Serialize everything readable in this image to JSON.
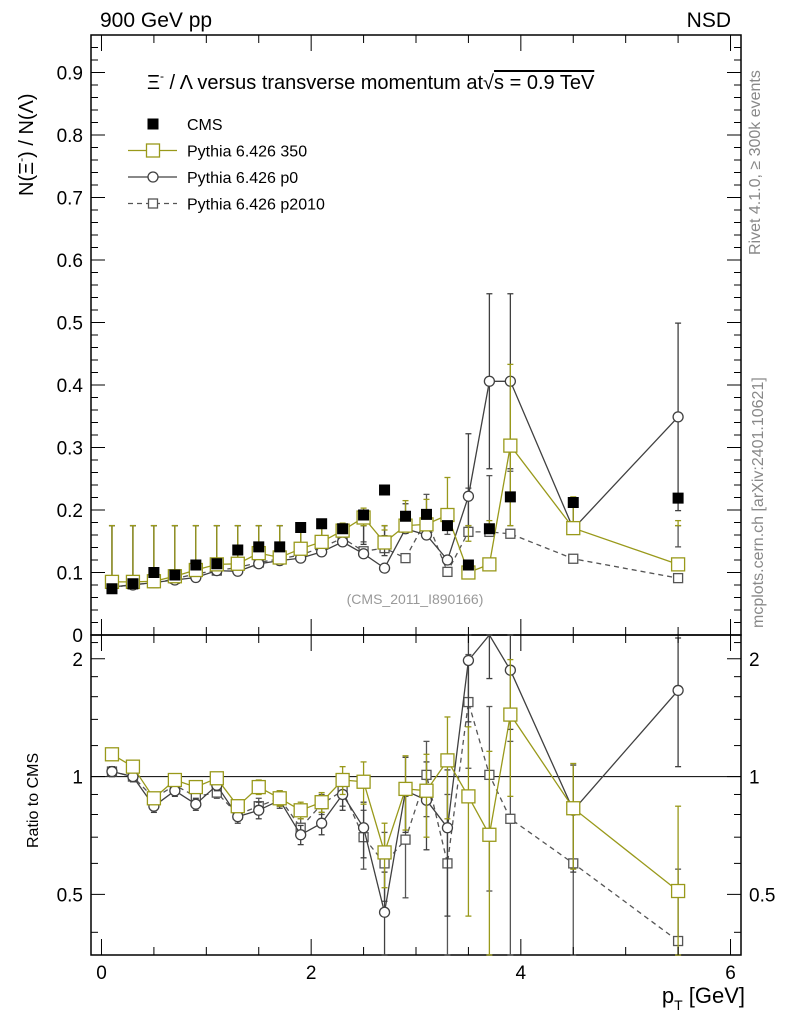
{
  "header": {
    "left": "900 GeV pp",
    "right": "NSD"
  },
  "side_labels": {
    "rivet": "Rivet 4.1.0, ≥ 300k events",
    "mcplots": "mcplots.cern.ch [arXiv:2401.10621]"
  },
  "chart_data": {
    "type": "scatter",
    "title": "Ξ⁻ / Λ versus transverse momentum at √s = 0.9 TeV",
    "title_parts": {
      "main": "Ξ",
      "sup": "-",
      "rest": " / Λ versus transverse momentum at",
      "sqrt": "√",
      "tail": "s = 0.9 TeV"
    },
    "ylabel": "N(Ξ⁻) / N(Λ)",
    "ylabel_parts": {
      "a": "N(Ξ",
      "sup": "-",
      "b": ")  / N(Λ)"
    },
    "ratio_ylabel": "Ratio to CMS",
    "xlabel": "p_T [GeV]",
    "xlabel_parts": {
      "p": "p",
      "sub": "T",
      "rest": " [GeV]"
    },
    "analysis_id": "(CMS_2011_I890166)",
    "xlim": [
      -0.1,
      6.1
    ],
    "ylim": [
      0,
      0.96
    ],
    "ratio_ylim": [
      0.35,
      2.3
    ],
    "x_ticks": [
      "0",
      "2",
      "4",
      "6"
    ],
    "y_ticks": [
      "0",
      "0.1",
      "0.2",
      "0.3",
      "0.4",
      "0.5",
      "0.6",
      "0.7",
      "0.8",
      "0.9"
    ],
    "ratio_ticks": [
      "0.5",
      "1",
      "2"
    ],
    "x": [
      0.1,
      0.3,
      0.5,
      0.7,
      0.9,
      1.1,
      1.3,
      1.5,
      1.7,
      1.9,
      2.1,
      2.3,
      2.5,
      2.7,
      2.9,
      3.1,
      3.3,
      3.5,
      3.7,
      3.9,
      4.5,
      5.5
    ],
    "series": [
      {
        "name": "CMS",
        "style": "filled-square",
        "color": "#000000",
        "values": [
          0.074,
          0.082,
          0.1,
          0.096,
          0.112,
          0.114,
          0.136,
          0.141,
          0.141,
          0.172,
          0.178,
          0.17,
          0.192,
          0.232,
          0.19,
          0.193,
          0.175,
          0.112,
          0.17,
          0.221,
          0.212,
          0.219
        ]
      },
      {
        "name": "Pythia 6.426 350",
        "style": "open-square-solid",
        "color": "#99991a",
        "values": [
          0.085,
          0.085,
          0.086,
          0.094,
          0.104,
          0.113,
          0.114,
          0.131,
          0.124,
          0.138,
          0.149,
          0.167,
          0.188,
          0.148,
          0.175,
          0.177,
          0.192,
          0.1,
          0.113,
          0.303,
          0.171,
          0.113
        ],
        "errors": [
          0.003,
          0.003,
          0.003,
          0.003,
          0.004,
          0.004,
          0.004,
          0.005,
          0.005,
          0.006,
          0.008,
          0.012,
          0.015,
          0.02,
          0.04,
          0.04,
          0.06,
          0.05,
          0.07,
          0.13,
          0.05,
          0.07
        ],
        "ratio": [
          1.14,
          1.06,
          0.88,
          0.98,
          0.94,
          0.99,
          0.84,
          0.94,
          0.88,
          0.82,
          0.86,
          0.98,
          0.97,
          0.64,
          0.93,
          0.92,
          1.1,
          0.89,
          0.71,
          1.44,
          0.83,
          0.51
        ],
        "ratio_errors": [
          0.03,
          0.03,
          0.03,
          0.03,
          0.03,
          0.03,
          0.03,
          0.04,
          0.04,
          0.04,
          0.05,
          0.08,
          0.12,
          0.12,
          0.2,
          0.22,
          0.32,
          0.45,
          0.45,
          0.55,
          0.25,
          0.33
        ]
      },
      {
        "name": "Pythia 6.426 p0",
        "style": "open-circle-solid",
        "color": "#404040",
        "values": [
          0.077,
          0.08,
          0.084,
          0.088,
          0.092,
          0.103,
          0.102,
          0.114,
          0.119,
          0.123,
          0.133,
          0.149,
          0.13,
          0.107,
          0.17,
          0.16,
          0.12,
          0.222,
          0.406,
          0.406,
          0.17,
          0.349
        ],
        "errors": [
          0.003,
          0.003,
          0.003,
          0.003,
          0.004,
          0.004,
          0.004,
          0.005,
          0.005,
          0.006,
          0.008,
          0.012,
          0.015,
          0.02,
          0.04,
          0.04,
          0.06,
          0.1,
          0.14,
          0.14,
          0.05,
          0.15
        ],
        "ratio": [
          1.03,
          1.0,
          0.84,
          0.92,
          0.85,
          0.95,
          0.79,
          0.82,
          0.87,
          0.71,
          0.76,
          0.9,
          0.74,
          0.45,
          0.92,
          0.87,
          0.74,
          1.98,
          2.38,
          1.87,
          0.82,
          1.66
        ],
        "ratio_errors": [
          0.03,
          0.03,
          0.03,
          0.03,
          0.03,
          0.03,
          0.03,
          0.04,
          0.04,
          0.04,
          0.05,
          0.08,
          0.12,
          0.12,
          0.2,
          0.22,
          0.3,
          0.6,
          0.6,
          0.55,
          0.25,
          0.6
        ]
      },
      {
        "name": "Pythia 6.426 p2010",
        "style": "open-square-dashed",
        "color": "#555555",
        "values": [
          0.076,
          0.081,
          0.083,
          0.09,
          0.098,
          0.103,
          0.108,
          0.116,
          0.122,
          0.128,
          0.14,
          0.155,
          0.134,
          0.139,
          0.123,
          0.185,
          0.101,
          0.165,
          0.165,
          0.162,
          0.122,
          0.091
        ],
        "errors": [
          0.003,
          0.003,
          0.003,
          0.003,
          0.004,
          0.004,
          0.004,
          0.005,
          0.005,
          0.006,
          0.008,
          0.012,
          0.015,
          0.02,
          0.04,
          0.04,
          0.06,
          0.07,
          0.09,
          0.1,
          0.05,
          0.05
        ],
        "ratio": [
          1.03,
          1.0,
          0.88,
          0.95,
          0.89,
          0.91,
          0.8,
          0.84,
          0.88,
          0.74,
          0.85,
          0.92,
          0.7,
          0.6,
          0.69,
          1.01,
          0.6,
          1.55,
          1.01,
          0.78,
          0.6,
          0.38
        ],
        "ratio_errors": [
          0.03,
          0.03,
          0.03,
          0.03,
          0.03,
          0.03,
          0.03,
          0.04,
          0.04,
          0.04,
          0.05,
          0.08,
          0.12,
          0.12,
          0.2,
          0.22,
          0.3,
          0.5,
          0.5,
          0.45,
          0.25,
          0.2
        ]
      }
    ]
  }
}
